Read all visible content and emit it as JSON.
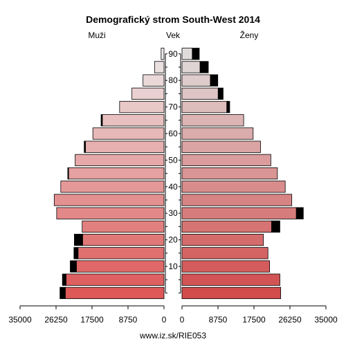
{
  "chart_data": {
    "type": "bar",
    "title": "Demografický strom South-West 2014",
    "left_label": "Muži",
    "center_label": "Vek",
    "right_label": "Ženy",
    "footer": "www.iz.sk/RIE053",
    "xlim": [
      0,
      35000
    ],
    "x_ticks": [
      0,
      8750,
      17500,
      26250,
      35000
    ],
    "x_tick_labels_left": [
      "35000",
      "26250",
      "17500",
      "8750",
      "0"
    ],
    "x_tick_labels_right": [
      "0",
      "8750",
      "17500",
      "26250",
      "35000"
    ],
    "age_ticks": [
      10,
      20,
      30,
      40,
      50,
      60,
      70,
      80,
      90
    ],
    "age_groups": [
      "0-4",
      "5-9",
      "10-14",
      "15-19",
      "20-24",
      "25-29",
      "30-34",
      "35-39",
      "40-44",
      "45-49",
      "50-54",
      "55-59",
      "60-64",
      "65-69",
      "70-74",
      "75-79",
      "80-84",
      "85-89",
      "90+"
    ],
    "series": [
      {
        "name": "Muži",
        "values": [
          24000,
          23800,
          21300,
          20900,
          19800,
          19900,
          26100,
          26700,
          25100,
          23200,
          21600,
          19100,
          17300,
          15000,
          10800,
          7800,
          5100,
          2300,
          700
        ],
        "surplus": [
          1300,
          900,
          1500,
          1000,
          2000,
          0,
          0,
          0,
          0,
          200,
          0,
          300,
          0,
          300,
          0,
          0,
          0,
          0,
          0
        ]
      },
      {
        "name": "Ženy",
        "values": [
          24000,
          23800,
          21300,
          20900,
          19800,
          21800,
          27800,
          26700,
          25100,
          23200,
          21600,
          19100,
          17300,
          15000,
          10900,
          8800,
          6900,
          4400,
          2500
        ],
        "surplus": [
          0,
          0,
          0,
          0,
          0,
          2000,
          1700,
          0,
          0,
          0,
          0,
          0,
          0,
          0,
          700,
          1200,
          1800,
          2000,
          1700
        ]
      }
    ]
  }
}
